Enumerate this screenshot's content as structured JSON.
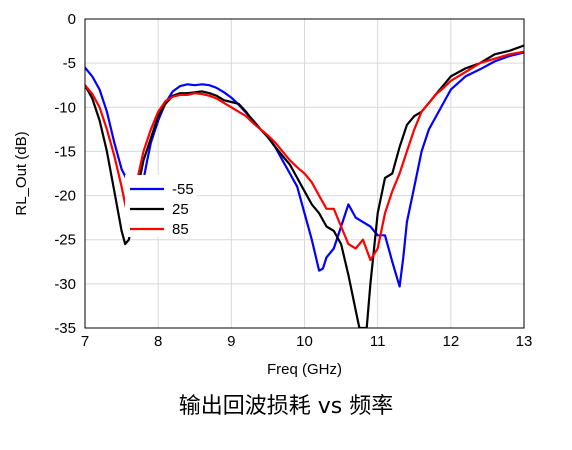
{
  "caption": "输出回波损耗 vs 频率",
  "chart_data": {
    "type": "line",
    "title": "",
    "xlabel": "Freq (GHz)",
    "ylabel": "RL_Out (dB)",
    "xlim": [
      7,
      13
    ],
    "ylim": [
      -35,
      0
    ],
    "xticks": [
      7,
      8,
      9,
      10,
      11,
      12,
      13
    ],
    "yticks": [
      0,
      -5,
      -10,
      -15,
      -20,
      -25,
      -30,
      -35
    ],
    "grid": true,
    "legend_position": "center-left",
    "series": [
      {
        "name": "-55",
        "color": "#0000ff",
        "points": [
          [
            7.0,
            -5.5
          ],
          [
            7.1,
            -6.5
          ],
          [
            7.2,
            -8.0
          ],
          [
            7.3,
            -10.5
          ],
          [
            7.4,
            -14.0
          ],
          [
            7.5,
            -17.0
          ],
          [
            7.56,
            -18.0
          ],
          [
            7.8,
            -18.2
          ],
          [
            7.85,
            -16.0
          ],
          [
            7.9,
            -14.0
          ],
          [
            8.0,
            -11.5
          ],
          [
            8.1,
            -9.5
          ],
          [
            8.2,
            -8.2
          ],
          [
            8.3,
            -7.6
          ],
          [
            8.4,
            -7.4
          ],
          [
            8.5,
            -7.5
          ],
          [
            8.6,
            -7.4
          ],
          [
            8.7,
            -7.5
          ],
          [
            8.8,
            -7.8
          ],
          [
            8.9,
            -8.3
          ],
          [
            9.0,
            -8.9
          ],
          [
            9.1,
            -9.7
          ],
          [
            9.2,
            -10.6
          ],
          [
            9.3,
            -11.5
          ],
          [
            9.4,
            -12.5
          ],
          [
            9.5,
            -13.3
          ],
          [
            9.6,
            -14.5
          ],
          [
            9.7,
            -16.0
          ],
          [
            9.8,
            -17.5
          ],
          [
            9.9,
            -19.0
          ],
          [
            10.0,
            -22.0
          ],
          [
            10.1,
            -25.0
          ],
          [
            10.2,
            -28.5
          ],
          [
            10.25,
            -28.3
          ],
          [
            10.3,
            -27.0
          ],
          [
            10.4,
            -26.0
          ],
          [
            10.5,
            -23.5
          ],
          [
            10.6,
            -21.0
          ],
          [
            10.7,
            -22.5
          ],
          [
            10.8,
            -23.0
          ],
          [
            10.9,
            -23.5
          ],
          [
            11.0,
            -24.5
          ],
          [
            11.1,
            -24.5
          ],
          [
            11.2,
            -27.5
          ],
          [
            11.3,
            -30.3
          ],
          [
            11.35,
            -27.0
          ],
          [
            11.4,
            -23.0
          ],
          [
            11.5,
            -19.0
          ],
          [
            11.6,
            -15.0
          ],
          [
            11.7,
            -12.5
          ],
          [
            11.8,
            -11.0
          ],
          [
            11.9,
            -9.5
          ],
          [
            12.0,
            -8.0
          ],
          [
            12.2,
            -6.5
          ],
          [
            12.4,
            -5.7
          ],
          [
            12.6,
            -4.8
          ],
          [
            12.8,
            -4.2
          ],
          [
            13.0,
            -3.8
          ]
        ]
      },
      {
        "name": "25",
        "color": "#000000",
        "points": [
          [
            7.0,
            -7.5
          ],
          [
            7.1,
            -9.0
          ],
          [
            7.2,
            -11.5
          ],
          [
            7.3,
            -15.0
          ],
          [
            7.4,
            -19.5
          ],
          [
            7.5,
            -24.0
          ],
          [
            7.55,
            -25.5
          ],
          [
            7.6,
            -25.0
          ],
          [
            7.7,
            -20.5
          ],
          [
            7.75,
            -18.0
          ],
          [
            7.8,
            -16.0
          ],
          [
            7.9,
            -13.5
          ],
          [
            8.0,
            -11.0
          ],
          [
            8.1,
            -9.6
          ],
          [
            8.2,
            -8.7
          ],
          [
            8.3,
            -8.4
          ],
          [
            8.4,
            -8.4
          ],
          [
            8.5,
            -8.3
          ],
          [
            8.6,
            -8.2
          ],
          [
            8.7,
            -8.4
          ],
          [
            8.8,
            -8.7
          ],
          [
            8.9,
            -9.2
          ],
          [
            9.0,
            -9.4
          ],
          [
            9.1,
            -9.6
          ],
          [
            9.2,
            -10.5
          ],
          [
            9.3,
            -11.6
          ],
          [
            9.4,
            -12.5
          ],
          [
            9.5,
            -13.4
          ],
          [
            9.6,
            -14.5
          ],
          [
            9.7,
            -15.5
          ],
          [
            9.8,
            -16.5
          ],
          [
            9.9,
            -18.0
          ],
          [
            10.0,
            -19.5
          ],
          [
            10.1,
            -21.0
          ],
          [
            10.2,
            -22.0
          ],
          [
            10.3,
            -23.5
          ],
          [
            10.4,
            -24.0
          ],
          [
            10.5,
            -25.5
          ],
          [
            10.6,
            -29.0
          ],
          [
            10.7,
            -33.0
          ],
          [
            10.75,
            -35.0
          ],
          [
            10.85,
            -35.0
          ],
          [
            10.9,
            -30.0
          ],
          [
            11.0,
            -22.0
          ],
          [
            11.1,
            -18.0
          ],
          [
            11.2,
            -17.5
          ],
          [
            11.3,
            -14.5
          ],
          [
            11.4,
            -12.0
          ],
          [
            11.5,
            -11.0
          ],
          [
            11.6,
            -10.5
          ],
          [
            11.7,
            -9.5
          ],
          [
            11.8,
            -8.5
          ],
          [
            11.9,
            -7.5
          ],
          [
            12.0,
            -6.5
          ],
          [
            12.2,
            -5.6
          ],
          [
            12.4,
            -5.0
          ],
          [
            12.6,
            -4.0
          ],
          [
            12.8,
            -3.6
          ],
          [
            13.0,
            -3.0
          ]
        ]
      },
      {
        "name": "85",
        "color": "#ff0000",
        "points": [
          [
            7.0,
            -7.5
          ],
          [
            7.1,
            -8.5
          ],
          [
            7.2,
            -10.0
          ],
          [
            7.3,
            -12.5
          ],
          [
            7.4,
            -15.5
          ],
          [
            7.5,
            -19.0
          ],
          [
            7.55,
            -21.0
          ],
          [
            7.6,
            -22.5
          ],
          [
            7.8,
            -15.0
          ],
          [
            7.9,
            -12.5
          ],
          [
            8.0,
            -10.5
          ],
          [
            8.1,
            -9.3
          ],
          [
            8.2,
            -8.8
          ],
          [
            8.3,
            -8.6
          ],
          [
            8.4,
            -8.6
          ],
          [
            8.5,
            -8.4
          ],
          [
            8.6,
            -8.5
          ],
          [
            8.7,
            -8.7
          ],
          [
            8.8,
            -9.0
          ],
          [
            8.9,
            -9.5
          ],
          [
            9.0,
            -10.0
          ],
          [
            9.1,
            -10.5
          ],
          [
            9.2,
            -11.0
          ],
          [
            9.3,
            -11.8
          ],
          [
            9.4,
            -12.5
          ],
          [
            9.5,
            -13.2
          ],
          [
            9.6,
            -14.0
          ],
          [
            9.7,
            -15.0
          ],
          [
            9.8,
            -16.0
          ],
          [
            9.9,
            -16.8
          ],
          [
            10.0,
            -17.5
          ],
          [
            10.1,
            -18.5
          ],
          [
            10.2,
            -20.0
          ],
          [
            10.3,
            -21.5
          ],
          [
            10.4,
            -21.5
          ],
          [
            10.5,
            -23.5
          ],
          [
            10.6,
            -25.5
          ],
          [
            10.7,
            -26.0
          ],
          [
            10.8,
            -25.0
          ],
          [
            10.9,
            -27.3
          ],
          [
            11.0,
            -26.0
          ],
          [
            11.1,
            -22.0
          ],
          [
            11.2,
            -19.5
          ],
          [
            11.3,
            -17.5
          ],
          [
            11.4,
            -15.0
          ],
          [
            11.5,
            -12.5
          ],
          [
            11.6,
            -10.5
          ],
          [
            11.7,
            -9.5
          ],
          [
            11.8,
            -8.5
          ],
          [
            11.9,
            -7.8
          ],
          [
            12.0,
            -7.0
          ],
          [
            12.2,
            -6.0
          ],
          [
            12.4,
            -5.0
          ],
          [
            12.6,
            -4.5
          ],
          [
            12.8,
            -4.0
          ],
          [
            13.0,
            -3.7
          ]
        ]
      }
    ]
  }
}
